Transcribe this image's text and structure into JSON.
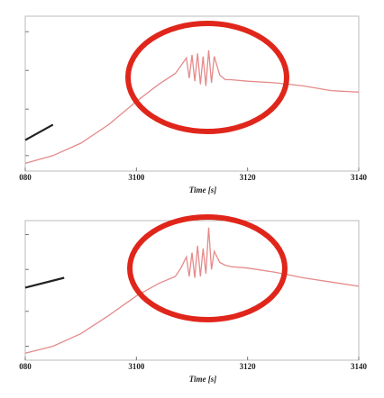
{
  "chart_data": [
    {
      "type": "line",
      "xlabel": "Time [s]",
      "xlim": [
        3080,
        3140
      ],
      "xticks": [
        {
          "value": 3080,
          "label": "080"
        },
        3100,
        3120,
        3140
      ],
      "ylim": [
        0,
        10
      ],
      "yticks": [
        1,
        4,
        6.5,
        9
      ],
      "series": [
        {
          "color": "#e58a8a",
          "x": [
            3080,
            3085,
            3090,
            3095,
            3100,
            3104,
            3107,
            3108,
            3109,
            3109.5,
            3110,
            3110.5,
            3111,
            3111.5,
            3112,
            3112.5,
            3113,
            3113.5,
            3114,
            3115,
            3116,
            3117,
            3120,
            3125,
            3130,
            3135,
            3140
          ],
          "values": [
            0.5,
            1.0,
            1.8,
            3.0,
            4.5,
            5.6,
            6.3,
            6.8,
            7.3,
            6.0,
            7.5,
            5.8,
            7.6,
            5.6,
            7.4,
            5.5,
            7.8,
            5.7,
            7.4,
            6.2,
            5.9,
            5.9,
            5.8,
            5.7,
            5.5,
            5.2,
            5.1
          ]
        },
        {
          "color": "#222222",
          "x": [
            3080,
            3085
          ],
          "values": [
            2.0,
            3.0
          ]
        }
      ]
    },
    {
      "type": "line",
      "xlabel": "Time [s]",
      "xlim": [
        3080,
        3140
      ],
      "xticks": [
        {
          "value": 3080,
          "label": "080"
        },
        3100,
        3120,
        3140
      ],
      "ylim": [
        0,
        10
      ],
      "yticks": [
        1,
        3.5,
        6.5,
        9
      ],
      "series": [
        {
          "color": "#e58a8a",
          "x": [
            3080,
            3085,
            3090,
            3095,
            3100,
            3104,
            3107,
            3108,
            3109,
            3109.5,
            3110,
            3110.5,
            3111,
            3111.5,
            3112,
            3112.5,
            3113,
            3113.5,
            3114,
            3115,
            3116,
            3117,
            3120,
            3125,
            3130,
            3135,
            3140
          ],
          "values": [
            0.5,
            1.0,
            1.9,
            3.2,
            4.6,
            5.5,
            6.0,
            6.6,
            7.4,
            6.0,
            7.7,
            5.9,
            8.2,
            6.0,
            8.0,
            6.2,
            9.5,
            6.5,
            7.8,
            7.0,
            6.8,
            6.7,
            6.6,
            6.3,
            5.9,
            5.6,
            5.3
          ]
        },
        {
          "color": "#222222",
          "x": [
            3080,
            3087
          ],
          "values": [
            5.2,
            5.9
          ]
        }
      ]
    }
  ]
}
